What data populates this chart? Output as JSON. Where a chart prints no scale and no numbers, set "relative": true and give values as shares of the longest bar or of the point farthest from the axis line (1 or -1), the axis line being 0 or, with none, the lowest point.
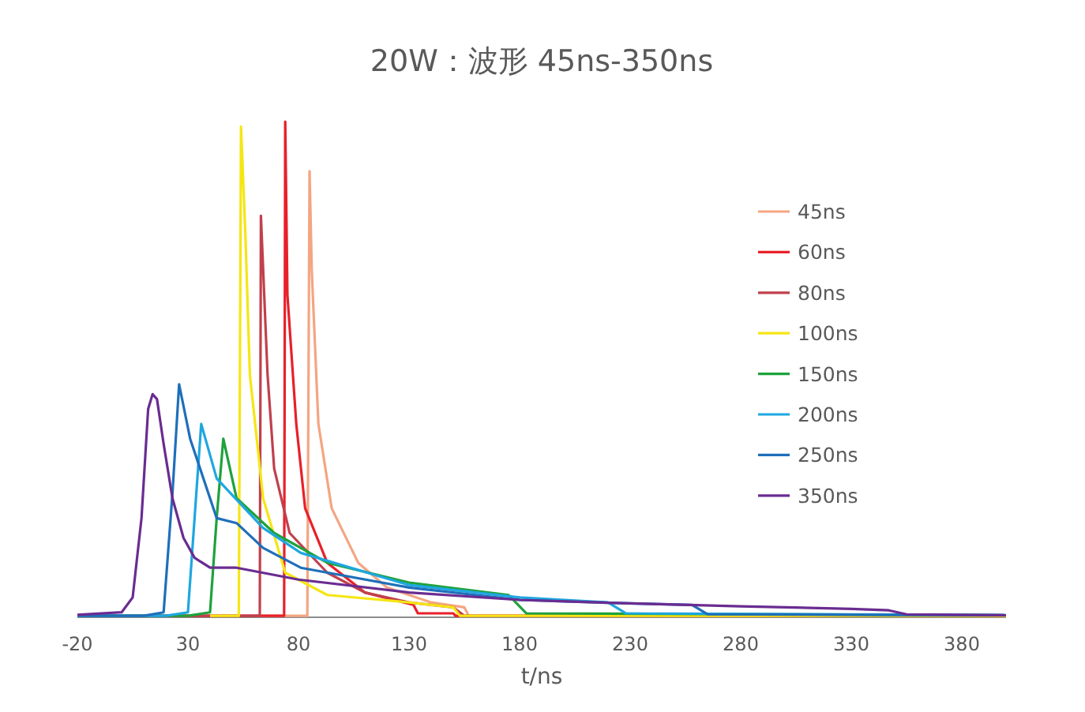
{
  "chart_data": {
    "type": "line",
    "title": "20W：波形 45ns-350ns",
    "xlabel": "t/ns",
    "relative": true,
    "xlim": [
      -20,
      400
    ],
    "xticks": [
      -20,
      30,
      80,
      130,
      180,
      230,
      280,
      330,
      380
    ],
    "legend": "right",
    "series": [
      {
        "name": "45ns",
        "color": "#f4a582",
        "x": [
          60,
          84,
          85,
          86,
          89,
          95,
          107,
          120,
          140,
          155,
          157
        ],
        "values": [
          0.003,
          0.003,
          0.9,
          0.7,
          0.39,
          0.22,
          0.11,
          0.06,
          0.03,
          0.02,
          0.003
        ]
      },
      {
        "name": "60ns",
        "color": "#e8202a",
        "x": [
          -20,
          60,
          73.5,
          74,
          75,
          79,
          83,
          93,
          110,
          132,
          134,
          150,
          151,
          400
        ],
        "values": [
          0.003,
          0.003,
          0.003,
          1.0,
          0.65,
          0.39,
          0.22,
          0.11,
          0.05,
          0.025,
          0.008,
          0.008,
          0.003,
          0.003
        ]
      },
      {
        "name": "80ns",
        "color": "#c0404c",
        "x": [
          -20,
          50,
          62.5,
          63,
          66,
          69,
          76,
          93,
          110,
          130,
          150,
          155,
          400
        ],
        "values": [
          0.003,
          0.003,
          0.003,
          0.81,
          0.49,
          0.3,
          0.17,
          0.09,
          0.05,
          0.03,
          0.02,
          0.003,
          0.003
        ]
      },
      {
        "name": "100ns",
        "color": "#f5e614",
        "x": [
          40,
          53,
          54,
          56,
          58,
          64,
          74,
          93,
          130,
          150,
          153,
          400
        ],
        "values": [
          0.003,
          0.003,
          0.99,
          0.77,
          0.49,
          0.24,
          0.09,
          0.045,
          0.03,
          0.02,
          0.003,
          0.003
        ]
      },
      {
        "name": "150ns",
        "color": "#1ea23c",
        "x": [
          -20,
          30,
          40,
          43,
          46,
          52,
          69,
          93,
          130,
          175,
          183,
          400
        ],
        "values": [
          0.003,
          0.003,
          0.01,
          0.2,
          0.36,
          0.24,
          0.17,
          0.11,
          0.07,
          0.045,
          0.008,
          0.004
        ]
      },
      {
        "name": "200ns",
        "color": "#1ea7e1",
        "x": [
          -20,
          20,
          30,
          33,
          36,
          43,
          64,
          81,
          130,
          180,
          220,
          228,
          400
        ],
        "values": [
          0.003,
          0.003,
          0.01,
          0.2,
          0.39,
          0.28,
          0.18,
          0.13,
          0.065,
          0.04,
          0.03,
          0.008,
          0.004
        ]
      },
      {
        "name": "250ns",
        "color": "#1f6fba",
        "x": [
          -20,
          10,
          19,
          23,
          26,
          31,
          43,
          52,
          64,
          81,
          130,
          180,
          230,
          258,
          265,
          400
        ],
        "values": [
          0.003,
          0.003,
          0.01,
          0.25,
          0.47,
          0.36,
          0.2,
          0.19,
          0.14,
          0.1,
          0.06,
          0.035,
          0.028,
          0.025,
          0.006,
          0.004
        ]
      },
      {
        "name": "350ns",
        "color": "#6a2c91",
        "x": [
          -20,
          0,
          5,
          9,
          12,
          14,
          16,
          19,
          23,
          28,
          33,
          40,
          52,
          80,
          130,
          180,
          230,
          280,
          330,
          347,
          355,
          400
        ],
        "values": [
          0.005,
          0.01,
          0.04,
          0.2,
          0.42,
          0.45,
          0.44,
          0.35,
          0.24,
          0.16,
          0.12,
          0.1,
          0.1,
          0.076,
          0.05,
          0.035,
          0.028,
          0.022,
          0.017,
          0.014,
          0.006,
          0.004
        ]
      }
    ]
  }
}
